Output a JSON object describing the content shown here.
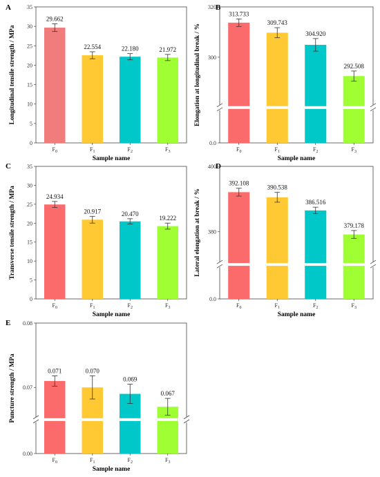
{
  "chart_data": [
    {
      "panel": "A",
      "type": "bar",
      "categories": [
        "F0",
        "F1",
        "F2",
        "F3"
      ],
      "values": [
        29.662,
        22.554,
        22.18,
        21.972
      ],
      "value_labels": [
        "29.662",
        "22.554",
        "22.180",
        "21.972"
      ],
      "errors": [
        1.0,
        0.9,
        0.8,
        0.8
      ],
      "ylabel": "Longitudinal tensile strength / MPa",
      "xlabel": "Sample name",
      "ylim": [
        0,
        35
      ],
      "yticks": [
        "0",
        "5",
        "10",
        "15",
        "20",
        "25",
        "30",
        "35"
      ],
      "broken_axis": false
    },
    {
      "panel": "B",
      "type": "bar",
      "categories": [
        "F0",
        "F1",
        "F2",
        "F3"
      ],
      "values": [
        313.733,
        309.743,
        304.92,
        292.508
      ],
      "value_labels": [
        "313.733",
        "309.743",
        "304.920",
        "292.508"
      ],
      "errors": [
        1.5,
        2.0,
        2.5,
        2.0
      ],
      "ylabel": "Elongation at longitudinal break / %",
      "xlabel": "Sample name",
      "ylim": [
        0,
        320
      ],
      "yticks": [
        "0.0",
        "300",
        "320"
      ],
      "broken_axis": true,
      "break_range": [
        0,
        280
      ]
    },
    {
      "panel": "C",
      "type": "bar",
      "categories": [
        "F0",
        "F1",
        "F2",
        "F3"
      ],
      "values": [
        24.934,
        20.917,
        20.47,
        19.222
      ],
      "value_labels": [
        "24.934",
        "20.917",
        "20.470",
        "19.222"
      ],
      "errors": [
        0.8,
        0.9,
        0.7,
        0.8
      ],
      "ylabel": "Transverse tensile strength / MPa",
      "xlabel": "Sample name",
      "ylim": [
        0,
        35
      ],
      "yticks": [
        "0",
        "5",
        "10",
        "15",
        "20",
        "25",
        "30",
        "35"
      ],
      "broken_axis": false
    },
    {
      "panel": "D",
      "type": "bar",
      "categories": [
        "F0",
        "F1",
        "F2",
        "F3"
      ],
      "values": [
        392.108,
        390.538,
        386.516,
        379.178
      ],
      "value_labels": [
        "392.108",
        "390.538",
        "386.516",
        "379.178"
      ],
      "errors": [
        1.2,
        1.5,
        1.0,
        1.2
      ],
      "ylabel": "Lateral elongation at break / %",
      "xlabel": "Sample name",
      "ylim": [
        0,
        400
      ],
      "yticks": [
        "0.0",
        "380",
        "400"
      ],
      "broken_axis": true,
      "break_range": [
        0,
        370
      ]
    },
    {
      "panel": "E",
      "type": "bar",
      "categories": [
        "F0",
        "F1",
        "F2",
        "F3"
      ],
      "values": [
        0.071,
        0.07,
        0.069,
        0.067
      ],
      "value_labels": [
        "0.071",
        "0.070",
        "0.069",
        "0.067"
      ],
      "errors": [
        0.0008,
        0.0018,
        0.0015,
        0.0013
      ],
      "ylabel": "Puncture strength / MPa",
      "xlabel": "Sample name",
      "ylim": [
        0,
        0.08
      ],
      "yticks": [
        "0.00",
        "0.07",
        "0.08"
      ],
      "broken_axis": true,
      "break_range": [
        0,
        0.065
      ]
    }
  ],
  "colors": [
    "#fc6b6b",
    "#ffc933",
    "#00c8c8",
    "#a0ff32"
  ],
  "first_bar_color_A": "#f07c7c"
}
